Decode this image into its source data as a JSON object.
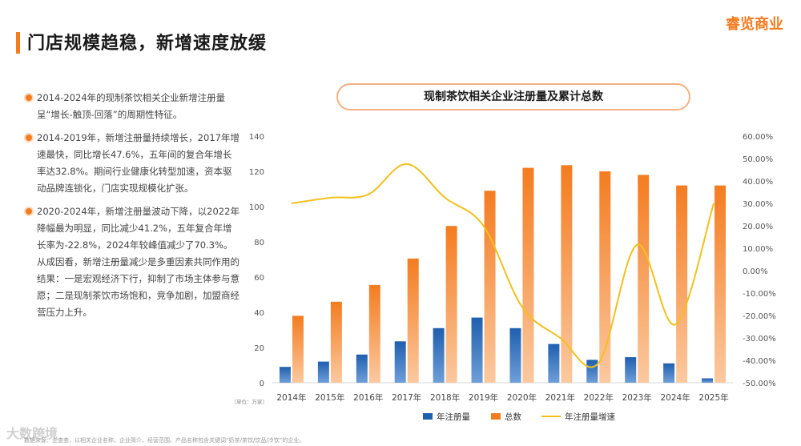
{
  "header": {
    "title": "门店规模趋稳，新增速度放缓",
    "logo": "睿览商业"
  },
  "bullets": [
    "2014-2024年的现制茶饮相关企业新增注册量呈“增长-触顶-回落”的周期性特征。",
    "2014-2019年，新增注册量持续增长，2017年增速最快，同比增长47.6%，五年间的复合年增长率达32.8%。期间行业健康化转型加速，资本驱动品牌连锁化，门店实现规模化扩张。",
    "2020-2024年，新增注册量波动下降，以2022年降幅最为明显，同比减少41.2%，五年复合年增长率为-22.8%，2024年较峰值减少了70.3%。从成因看，新增注册量减少是多重因素共同作用的结果：一是宏观经济下行，抑制了市场主体参与意愿；二是现制茶饮市场饱和，竞争加剧，加盟商经营压力上升。"
  ],
  "footer": {
    "watermark": "大数跨境",
    "source": "数据来源：企查查，以相关企业名称、企业简介、经营范围、产品名称包含关键词“奶茶/茶饮/饮品/冷饮”的企业。"
  },
  "colors": {
    "accent": "#f47c20",
    "new_bar": "#1f5fae",
    "total_bar": "#f47c20",
    "growth_line": "#f2c01c"
  },
  "chart_data": {
    "type": "bar",
    "title": "现制茶饮相关企业注册量及累计总数",
    "unit_label": "（单位：万家）",
    "categories": [
      "2014年",
      "2015年",
      "2016年",
      "2017年",
      "2018年",
      "2019年",
      "2020年",
      "2021年",
      "2022年",
      "2023年",
      "2024年",
      "2025年"
    ],
    "series": [
      {
        "name": "年注册量",
        "type": "bar",
        "axis": "left",
        "values": [
          9,
          12,
          16,
          23.5,
          31,
          37,
          31,
          22,
          13,
          14.5,
          11,
          2.5
        ]
      },
      {
        "name": "总数",
        "type": "bar",
        "axis": "left",
        "values": [
          38,
          46,
          55.5,
          70.5,
          89,
          109,
          122,
          123.5,
          120,
          118,
          112,
          112
        ]
      },
      {
        "name": "年注册量增速",
        "type": "line",
        "axis": "right",
        "values": [
          30,
          32.5,
          34,
          47.6,
          32.5,
          20,
          -16,
          -30,
          -41.2,
          11.5,
          -24,
          30
        ]
      }
    ],
    "y_left": {
      "min": 0,
      "max": 140,
      "step": 20,
      "ticks": [
        "0",
        "20",
        "40",
        "60",
        "80",
        "100",
        "120",
        "140"
      ]
    },
    "y_right": {
      "min": -50,
      "max": 60,
      "step": 10,
      "ticks": [
        "-50.00%",
        "-40.00%",
        "-30.00%",
        "-20.00%",
        "-10.00%",
        "0.00%",
        "10.00%",
        "20.00%",
        "30.00%",
        "40.00%",
        "50.00%",
        "60.00%"
      ]
    },
    "grid": false,
    "legend_position": "bottom"
  }
}
